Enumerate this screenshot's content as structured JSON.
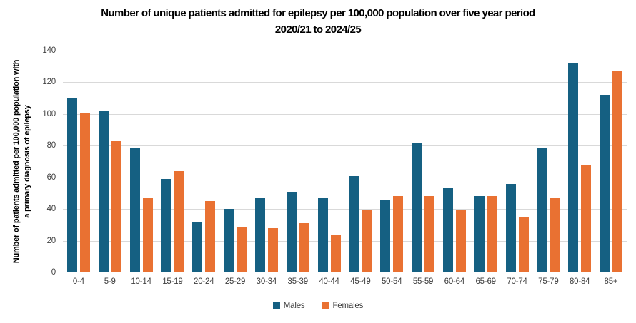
{
  "title": {
    "line1": "Number of unique patients admitted for epilepsy per 100,000 population over five year period",
    "line2": "2020/21 to 2024/25"
  },
  "y_axis": {
    "label_line1": "Number of patients admitted per 100,000 population with",
    "label_line2": "a primary diagnosis of epilepsy",
    "ticks": [
      0,
      20,
      40,
      60,
      80,
      100,
      120,
      140
    ]
  },
  "legend": {
    "items": [
      {
        "label": "Males",
        "color": "#156082"
      },
      {
        "label": "Females",
        "color": "#E97132"
      }
    ]
  },
  "colors": {
    "males": "#156082",
    "females": "#E97132",
    "gridline": "#d9d9d9",
    "axis_text": "#404040",
    "title_text": "#000000"
  },
  "chart_data": {
    "type": "bar",
    "title": "Number of unique patients admitted for epilepsy per 100,000 population over five year period 2020/21 to 2024/25",
    "categories": [
      "0-4",
      "5-9",
      "10-14",
      "15-19",
      "20-24",
      "25-29",
      "30-34",
      "35-39",
      "40-44",
      "45-49",
      "50-54",
      "55-59",
      "60-64",
      "65-69",
      "70-74",
      "75-79",
      "80-84",
      "85+"
    ],
    "series": [
      {
        "name": "Males",
        "color": "#156082",
        "values": [
          110,
          102,
          79,
          59,
          32,
          40,
          47,
          51,
          47,
          61,
          46,
          82,
          53,
          48,
          56,
          79,
          132,
          112
        ]
      },
      {
        "name": "Females",
        "color": "#E97132",
        "values": [
          101,
          83,
          47,
          64,
          45,
          29,
          28,
          31,
          24,
          39,
          48,
          48,
          39,
          48,
          35,
          47,
          68,
          127
        ]
      }
    ],
    "xlabel": "",
    "ylabel": "Number of patients admitted per 100,000 population with a primary diagnosis of epilepsy",
    "ylim": [
      0,
      140
    ],
    "ytick_step": 20,
    "grid": "horizontal",
    "legend_position": "bottom"
  }
}
